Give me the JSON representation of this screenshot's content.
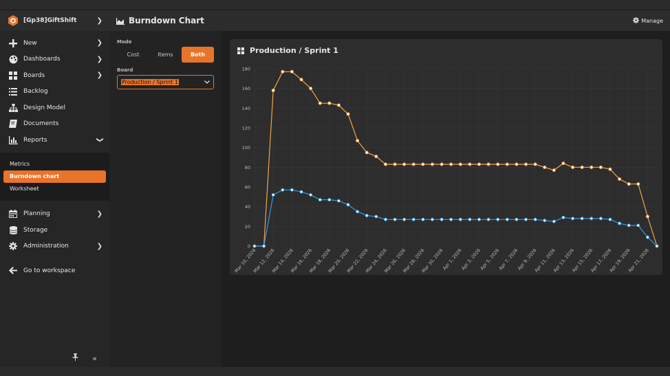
{
  "app": {
    "name": "[Gp38]GiftShift"
  },
  "sidebar": {
    "items": [
      {
        "label": "New",
        "icon": "plus-icon"
      },
      {
        "label": "Dashboards",
        "icon": "palette-icon"
      },
      {
        "label": "Boards",
        "icon": "grid-icon"
      },
      {
        "label": "Backlog",
        "icon": "list-icon"
      },
      {
        "label": "Design Model",
        "icon": "sitemap-icon"
      },
      {
        "label": "Documents",
        "icon": "book-icon"
      },
      {
        "label": "Reports",
        "icon": "bar-chart-icon"
      }
    ],
    "sub_items": [
      {
        "label": "Metrics"
      },
      {
        "label": "Burndown chart"
      },
      {
        "label": "Worksheet"
      }
    ],
    "lower_items": [
      {
        "label": "Planning",
        "icon": "calendar-icon"
      },
      {
        "label": "Storage",
        "icon": "database-icon"
      },
      {
        "label": "Administration",
        "icon": "gear-icon"
      }
    ],
    "workspace_link": "Go to workspace"
  },
  "header": {
    "title": "Burndown Chart",
    "manage_label": "Manage"
  },
  "controls": {
    "mode_label": "Mode",
    "modes": [
      "Cost",
      "Items",
      "Both"
    ],
    "active_mode": "Both",
    "board_label": "Board",
    "board_value": "Production / Sprint 1"
  },
  "colors": {
    "accent": "#e8742a",
    "cost_line": "#f5a54a",
    "items_line": "#3a9ad9"
  },
  "chart_data": {
    "type": "line",
    "title": "Production / Sprint 1",
    "x": [
      "Mar 10, 2026",
      "Mar 11, 2026",
      "Mar 12, 2026",
      "Mar 13, 2026",
      "Mar 14, 2026",
      "Mar 15, 2026",
      "Mar 16, 2026",
      "Mar 17, 2026",
      "Mar 18, 2026",
      "Mar 19, 2026",
      "Mar 20, 2026",
      "Mar 21, 2026",
      "Mar 22, 2026",
      "Mar 23, 2026",
      "Mar 24, 2026",
      "Mar 25, 2026",
      "Mar 26, 2026",
      "Mar 27, 2026",
      "Mar 28, 2026",
      "Mar 29, 2026",
      "Mar 30, 2026",
      "Mar 31, 2026",
      "Apr 1, 2026",
      "Apr 2, 2026",
      "Apr 3, 2026",
      "Apr 4, 2026",
      "Apr 5, 2026",
      "Apr 6, 2026",
      "Apr 7, 2026",
      "Apr 8, 2026",
      "Apr 9, 2026",
      "Apr 10, 2026",
      "Apr 11, 2026",
      "Apr 12, 2026",
      "Apr 13, 2026",
      "Apr 14, 2026",
      "Apr 15, 2026",
      "Apr 16, 2026",
      "Apr 17, 2026",
      "Apr 18, 2026",
      "Apr 19, 2026",
      "Apr 20, 2026",
      "Apr 21, 2026",
      "Apr 22, 2026"
    ],
    "x_tick_labels": [
      "Mar 10, 2026",
      "Mar 12, 2026",
      "Mar 14, 2026",
      "Mar 16, 2026",
      "Mar 18, 2026",
      "Mar 20, 2026",
      "Mar 22, 2026",
      "Mar 24, 2026",
      "Mar 26, 2026",
      "Mar 28, 2026",
      "Mar 30, 2026",
      "Apr 1, 2026",
      "Apr 3, 2026",
      "Apr 5, 2026",
      "Apr 7, 2026",
      "Apr 9, 2026",
      "Apr 11, 2026",
      "Apr 13, 2026",
      "Apr 15, 2026",
      "Apr 17, 2026",
      "Apr 19, 2026",
      "Apr 21, 2026"
    ],
    "y_ticks": [
      0,
      20,
      40,
      60,
      80,
      100,
      120,
      140,
      160,
      180
    ],
    "ylim": [
      0,
      180
    ],
    "grid": true,
    "series": [
      {
        "color": "#f5a54a",
        "values": [
          0,
          0,
          158,
          177,
          177,
          169,
          160,
          145,
          145,
          143,
          134,
          107,
          95,
          91,
          83,
          83,
          83,
          83,
          83,
          83,
          83,
          83,
          83,
          83,
          83,
          83,
          83,
          83,
          83,
          83,
          83,
          80,
          77,
          84,
          80,
          80,
          80,
          80,
          78,
          68,
          63,
          63,
          30,
          0
        ]
      },
      {
        "color": "#3a9ad9",
        "values": [
          0,
          0,
          52,
          57,
          57,
          55,
          52,
          47,
          47,
          46,
          42,
          35,
          31,
          30,
          27,
          27,
          27,
          27,
          27,
          27,
          27,
          27,
          27,
          27,
          27,
          27,
          27,
          27,
          27,
          27,
          27,
          26,
          25,
          29,
          28,
          28,
          28,
          28,
          27,
          23,
          21,
          21,
          9,
          0
        ]
      }
    ]
  }
}
